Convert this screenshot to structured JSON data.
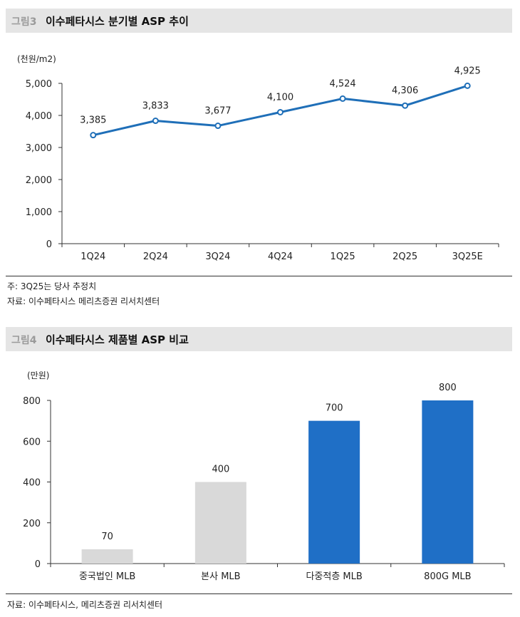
{
  "figure3": {
    "number": "그림3",
    "title": "이수페타시스 분기별 ASP 추이",
    "note": "주: 3Q25는 당사 추정치",
    "source": "자료: 이수페타시스 메리츠증권 리서치센터"
  },
  "figure4": {
    "number": "그림4",
    "title": "이수페타시스 제품별 ASP 비교",
    "source": "자료: 이수페타시스, 메리츠증권 리서치센터"
  },
  "chart_data": [
    {
      "type": "line",
      "unit": "(천원/m2)",
      "categories": [
        "1Q24",
        "2Q24",
        "3Q24",
        "4Q24",
        "1Q25",
        "2Q25",
        "3Q25E"
      ],
      "values": [
        3385,
        3833,
        3677,
        4100,
        4524,
        4306,
        4925
      ],
      "value_labels": [
        "3,385",
        "3,833",
        "3,677",
        "4,100",
        "4,524",
        "4,306",
        "4,925"
      ],
      "ylim": [
        0,
        5000
      ],
      "yticks": [
        0,
        1000,
        2000,
        3000,
        4000,
        5000
      ],
      "ytick_labels": [
        "0",
        "1,000",
        "2,000",
        "3,000",
        "4,000",
        "5,000"
      ],
      "grid": false,
      "color": "#1f6fb8"
    },
    {
      "type": "bar",
      "unit": "(만원)",
      "categories": [
        "중국법인 MLB",
        "본사 MLB",
        "다중적층 MLB",
        "800G MLB"
      ],
      "values": [
        70,
        400,
        700,
        800
      ],
      "value_labels": [
        "70",
        "400",
        "700",
        "800"
      ],
      "bar_colors": [
        "#d9d9d9",
        "#d9d9d9",
        "#1f6fc6",
        "#1f6fc6"
      ],
      "ylim": [
        0,
        800
      ],
      "yticks": [
        0,
        200,
        400,
        600,
        800
      ],
      "ytick_labels": [
        "0",
        "200",
        "400",
        "600",
        "800"
      ],
      "grid": false
    }
  ]
}
